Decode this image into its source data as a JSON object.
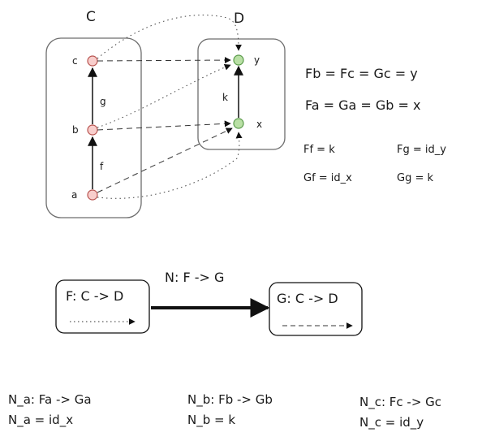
{
  "category_c": {
    "title": "C",
    "objects": {
      "a": "a",
      "b": "b",
      "c": "c"
    },
    "morphisms": {
      "f": "f",
      "g": "g"
    }
  },
  "category_d": {
    "title": "D",
    "objects": {
      "x": "x",
      "y": "y"
    },
    "morphisms": {
      "k": "k"
    }
  },
  "equations": {
    "objects": [
      "Fb = Fc = Gc = y",
      "Fa = Ga = Gb = x"
    ],
    "morphisms": [
      "Ff = k",
      "Fg = id_y",
      "Gf = id_x",
      "Gg = k"
    ]
  },
  "functors": {
    "f_label": "F: C -> D",
    "g_label": "G: C -> D",
    "natural_transformation": "N: F -> G"
  },
  "components": [
    {
      "name": "N_a: Fa -> Ga",
      "value": "N_a = id_x"
    },
    {
      "name": "N_b: Fb -> Gb",
      "value": "N_b = k"
    },
    {
      "name": "N_c: Fc -> Gc",
      "value": "N_c = id_y"
    }
  ],
  "colors": {
    "c_node_fill": "#f8cecc",
    "c_node_stroke": "#b85450",
    "d_node_fill": "#b9e0a5",
    "d_node_stroke": "#5a9a4a",
    "ink": "#1a1a1a",
    "box_stroke": "#6d6d6d"
  }
}
